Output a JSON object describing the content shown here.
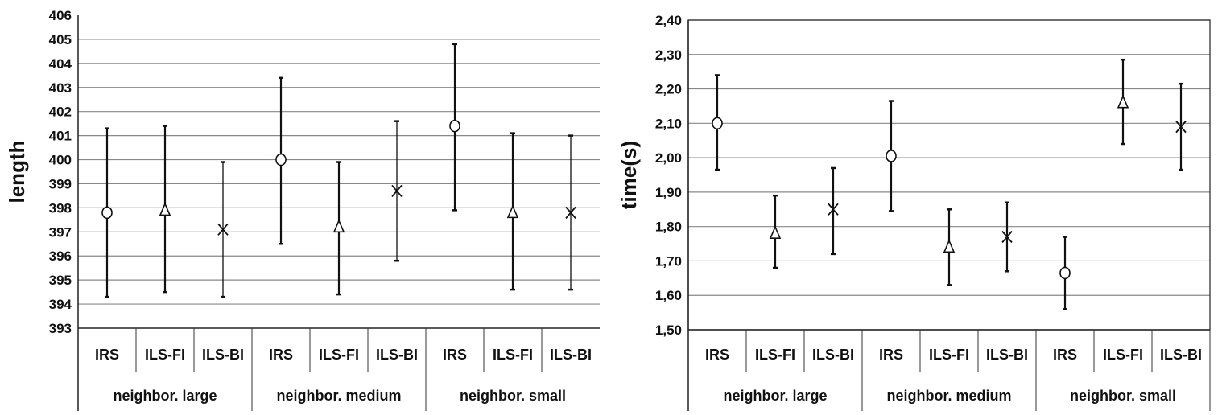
{
  "chart_data": [
    {
      "type": "scatter",
      "subtype": "error-bar",
      "title": "",
      "ylabel": "length",
      "ylim": [
        393,
        406
      ],
      "yticks": [
        "393",
        "394",
        "395",
        "396",
        "397",
        "398",
        "399",
        "400",
        "401",
        "402",
        "403",
        "404",
        "405",
        "406"
      ],
      "grid": true,
      "border": false,
      "groups": [
        "neighbor. large",
        "neighbor. medium",
        "neighbor. small"
      ],
      "categories": [
        "IRS",
        "ILS-FI",
        "ILS-BI",
        "IRS",
        "ILS-FI",
        "ILS-BI",
        "IRS",
        "ILS-FI",
        "ILS-BI"
      ],
      "markers": [
        "circle",
        "triangle",
        "x",
        "circle",
        "triangle",
        "x",
        "circle",
        "triangle",
        "x"
      ],
      "values": [
        397.8,
        397.9,
        397.1,
        400.0,
        397.2,
        398.7,
        401.4,
        397.8,
        397.8
      ],
      "lower": [
        394.3,
        394.5,
        394.3,
        396.5,
        394.4,
        395.8,
        397.9,
        394.6,
        394.6
      ],
      "upper": [
        401.3,
        401.4,
        399.9,
        403.4,
        399.9,
        401.6,
        404.8,
        401.1,
        401.0
      ]
    },
    {
      "type": "scatter",
      "subtype": "error-bar",
      "title": "",
      "ylabel": "time(s)",
      "ylim": [
        1.5,
        2.4
      ],
      "yticks": [
        "1,50",
        "1,60",
        "1,70",
        "1,80",
        "1,90",
        "2,00",
        "2,10",
        "2,20",
        "2,30",
        "2,40"
      ],
      "grid": true,
      "border": true,
      "groups": [
        "neighbor. large",
        "neighbor. medium",
        "neighbor. small"
      ],
      "categories": [
        "IRS",
        "ILS-FI",
        "ILS-BI",
        "IRS",
        "ILS-FI",
        "ILS-BI",
        "IRS",
        "ILS-FI",
        "ILS-BI"
      ],
      "markers": [
        "circle",
        "triangle",
        "x",
        "circle",
        "triangle",
        "x",
        "circle",
        "triangle",
        "x"
      ],
      "values": [
        2.1,
        1.78,
        1.85,
        2.005,
        1.74,
        1.77,
        1.665,
        2.16,
        2.09
      ],
      "lower": [
        1.965,
        1.68,
        1.72,
        1.845,
        1.63,
        1.67,
        1.56,
        2.04,
        1.965
      ],
      "upper": [
        2.24,
        1.89,
        1.97,
        2.165,
        1.85,
        1.87,
        1.77,
        2.285,
        2.215
      ]
    }
  ]
}
